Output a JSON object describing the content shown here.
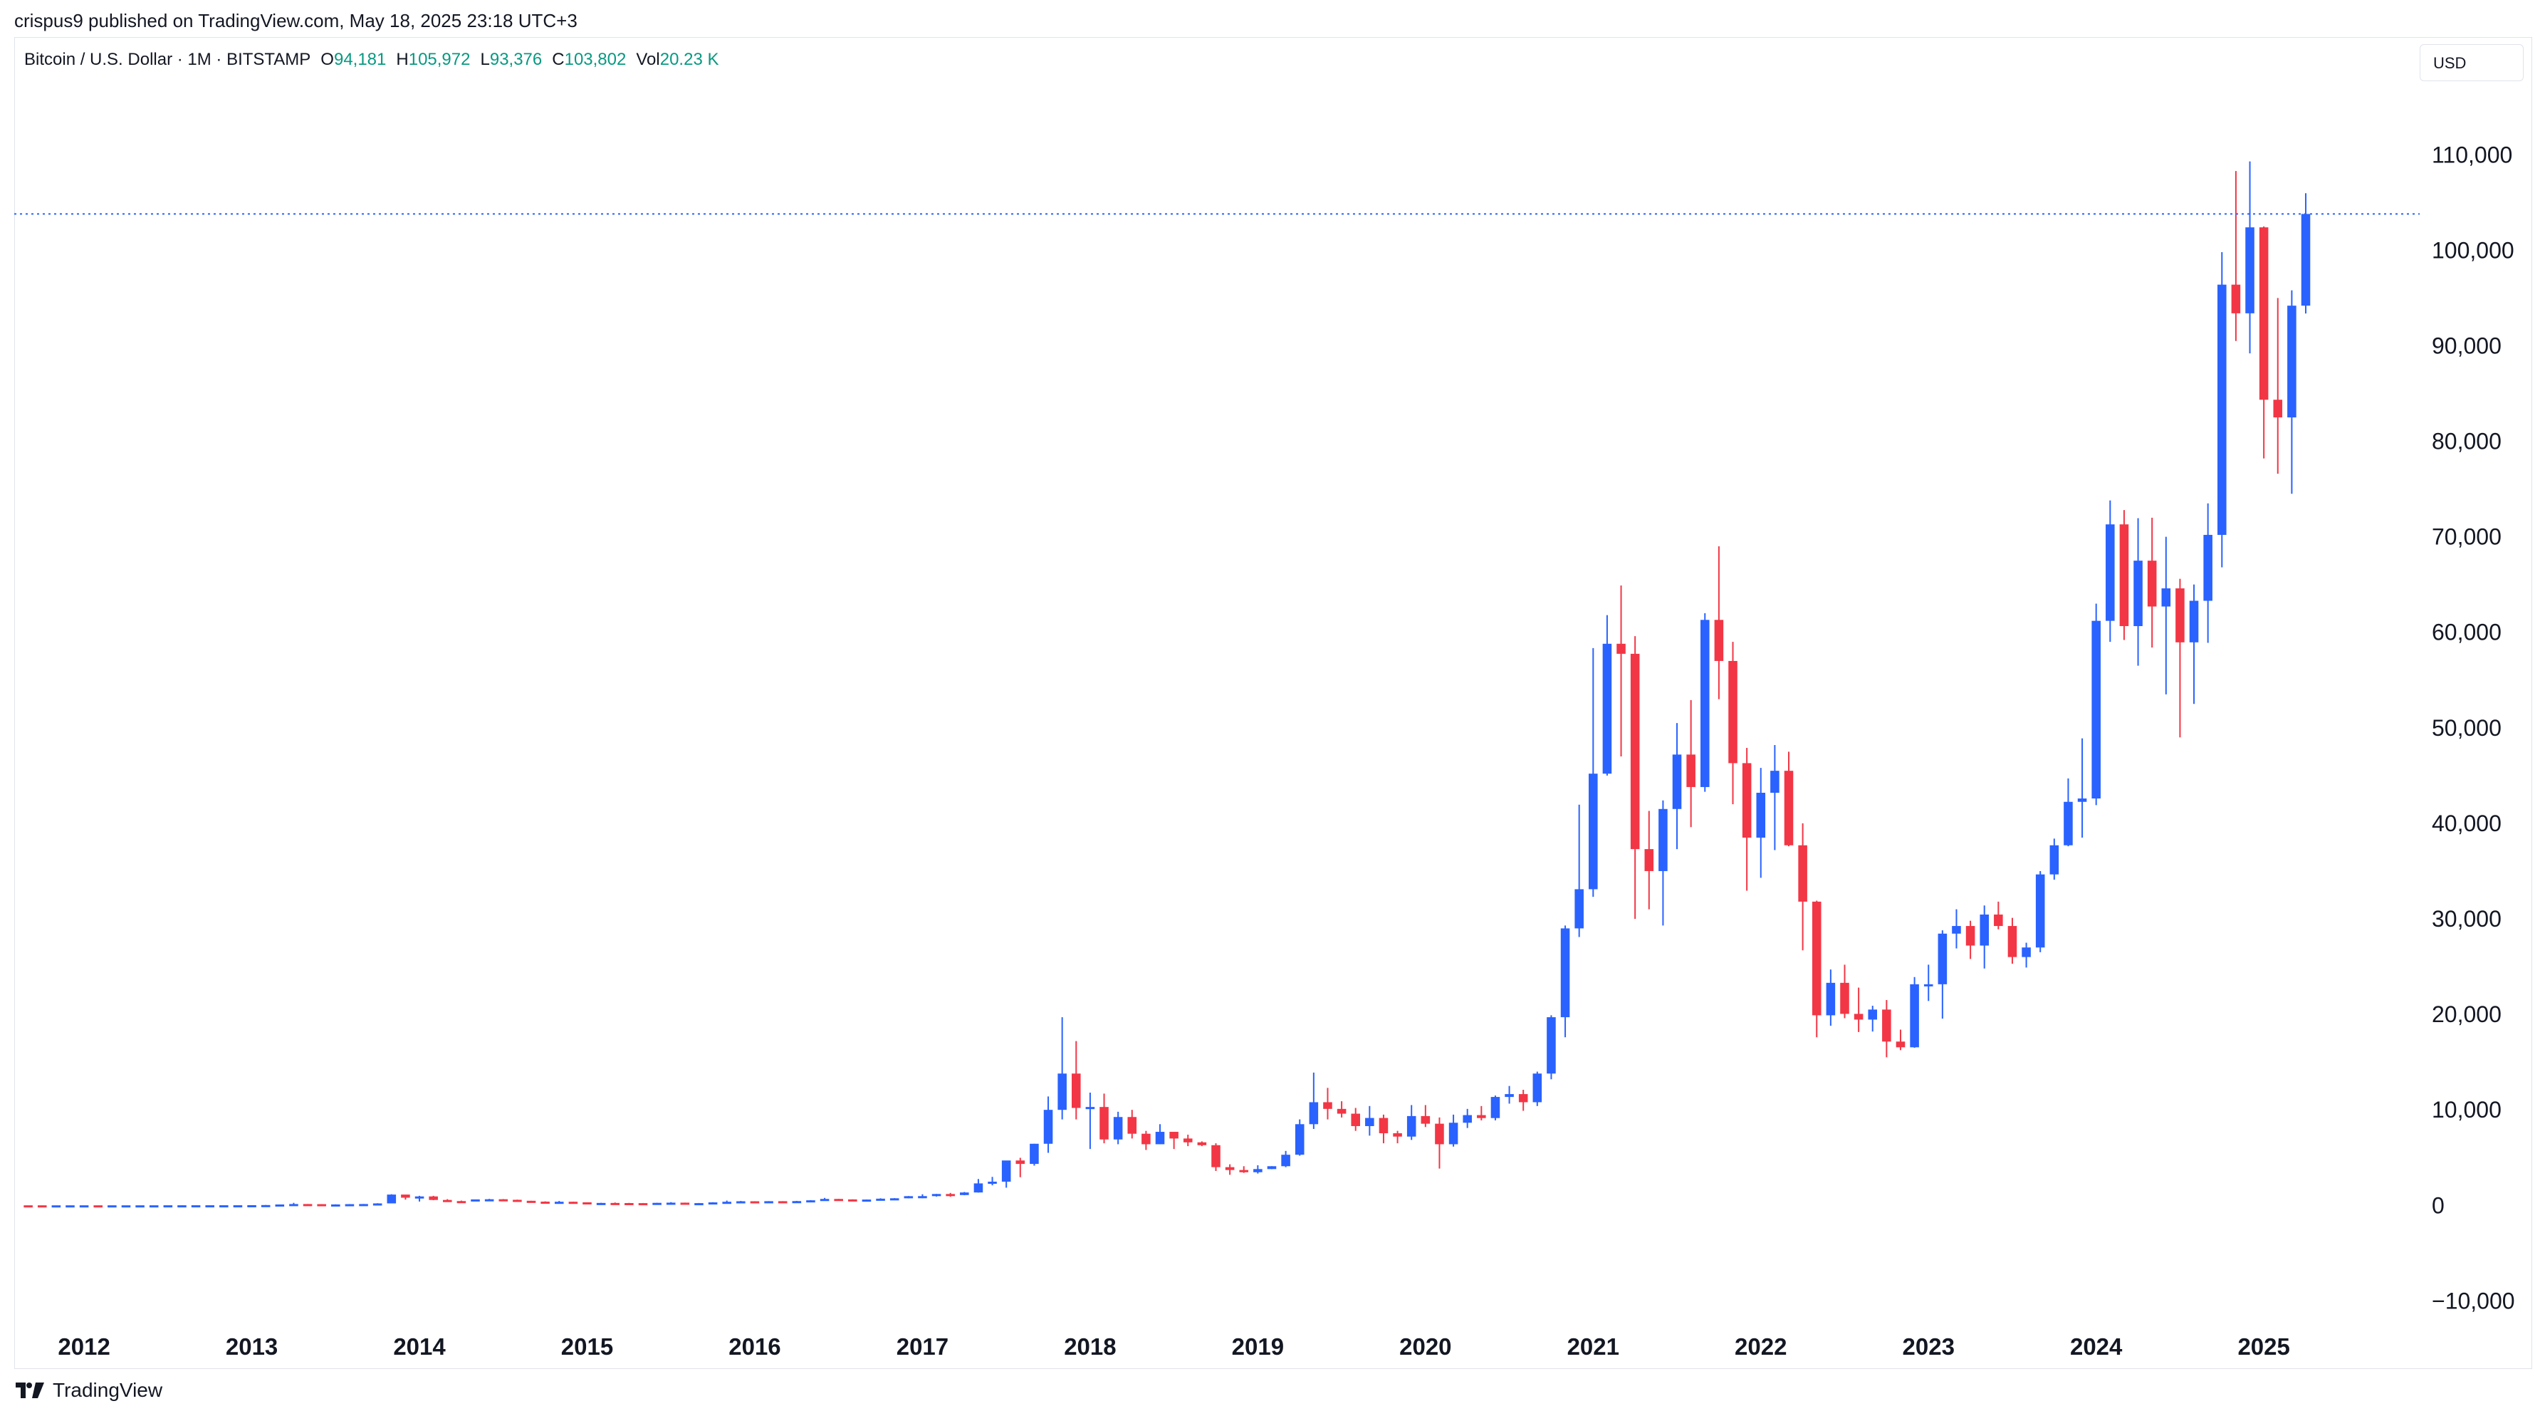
{
  "attribution": "crispus9 published on TradingView.com, May 18, 2025 23:18 UTC+3",
  "legend": {
    "symbol": "Bitcoin / U.S. Dollar · 1M · BITSTAMP",
    "o_label": "O",
    "o_value": "94,181",
    "h_label": "H",
    "h_value": "105,972",
    "l_label": "L",
    "l_value": "93,376",
    "c_label": "C",
    "c_value": "103,802",
    "vol_label": "Vol",
    "vol_value": "20.23 K"
  },
  "currency_button": "USD",
  "brand_label": "TradingView",
  "colors": {
    "up": "#2962ff",
    "down": "#f23645",
    "price_line": "#2962ff",
    "text": "#131722",
    "legend_value": "#089981"
  },
  "chart_data": {
    "type": "candlestick",
    "title": "Bitcoin / U.S. Dollar · 1M · BITSTAMP",
    "interval": "1M",
    "ylabel": "USD",
    "ylim": [
      -14000,
      118000
    ],
    "yticks": [
      -10000,
      0,
      10000,
      20000,
      30000,
      40000,
      50000,
      60000,
      70000,
      80000,
      90000,
      100000,
      110000
    ],
    "ytick_labels": [
      "−10,000",
      "0",
      "10,000",
      "20,000",
      "30,000",
      "40,000",
      "50,000",
      "60,000",
      "70,000",
      "80,000",
      "90,000",
      "100,000",
      "110,000"
    ],
    "xticks": [
      2012,
      2013,
      2014,
      2015,
      2016,
      2017,
      2018,
      2019,
      2020,
      2021,
      2022,
      2023,
      2024,
      2025
    ],
    "xtick_labels": [
      "2012",
      "2013",
      "2014",
      "2015",
      "2016",
      "2017",
      "2018",
      "2019",
      "2020",
      "2021",
      "2022",
      "2023",
      "2024",
      "2025"
    ],
    "x_range": [
      "2011-08",
      "2025-12"
    ],
    "last_close": 103802,
    "start": "2011-09",
    "ohlc": [
      [
        5,
        5.5,
        2.2,
        4.8
      ],
      [
        4.8,
        4.9,
        2,
        3
      ],
      [
        3,
        4,
        2.2,
        3
      ],
      [
        3,
        6,
        3,
        4.7
      ],
      [
        4.7,
        7,
        4.7,
        5.5
      ],
      [
        5.5,
        6.1,
        4.3,
        4.9
      ],
      [
        4.9,
        5.2,
        4.4,
        4.9
      ],
      [
        4.9,
        5.2,
        4.6,
        5
      ],
      [
        5,
        5.2,
        4.9,
        5.2
      ],
      [
        5.2,
        6.8,
        5.2,
        6.7
      ],
      [
        6.7,
        9.4,
        6.7,
        9.4
      ],
      [
        9.4,
        16.4,
        7.3,
        10.2
      ],
      [
        10.2,
        12.5,
        9.8,
        12.4
      ],
      [
        12.4,
        12.5,
        10.3,
        12.4
      ],
      [
        12.4,
        12.5,
        10.4,
        12.6
      ],
      [
        12.6,
        13.5,
        12.1,
        13.4
      ],
      [
        13.4,
        21,
        13,
        20.4
      ],
      [
        20.4,
        39,
        20,
        33.4
      ],
      [
        33.4,
        93,
        33,
        93
      ],
      [
        93,
        266,
        50,
        139
      ],
      [
        139,
        140,
        70,
        128
      ],
      [
        128,
        128,
        67,
        95
      ],
      [
        95,
        111,
        65,
        97
      ],
      [
        97,
        135,
        91,
        127
      ],
      [
        127,
        145,
        110,
        140
      ],
      [
        140,
        225,
        118,
        206
      ],
      [
        206,
        1163,
        206,
        1131
      ],
      [
        1131,
        1100,
        600,
        803
      ],
      [
        803,
        1000,
        400,
        935
      ],
      [
        935,
        1000,
        540,
        566
      ],
      [
        566,
        650,
        450,
        450
      ],
      [
        450,
        500,
        350,
        447
      ],
      [
        447,
        580,
        430,
        625
      ],
      [
        625,
        680,
        530,
        641
      ],
      [
        641,
        660,
        560,
        582
      ],
      [
        582,
        600,
        460,
        479
      ],
      [
        479,
        480,
        380,
        390
      ],
      [
        390,
        420,
        275,
        337
      ],
      [
        337,
        460,
        325,
        378
      ],
      [
        378,
        380,
        305,
        320
      ],
      [
        320,
        320,
        165,
        217
      ],
      [
        217,
        270,
        205,
        254
      ],
      [
        254,
        300,
        230,
        244
      ],
      [
        244,
        260,
        212,
        235
      ],
      [
        235,
        247,
        223,
        230
      ],
      [
        230,
        270,
        215,
        264
      ],
      [
        264,
        335,
        251,
        284
      ],
      [
        284,
        290,
        199,
        230
      ],
      [
        230,
        250,
        225,
        236
      ],
      [
        236,
        330,
        235,
        313
      ],
      [
        313,
        500,
        300,
        377
      ],
      [
        377,
        465,
        355,
        430
      ],
      [
        430,
        435,
        355,
        369
      ],
      [
        369,
        442,
        360,
        437
      ],
      [
        437,
        440,
        395,
        416
      ],
      [
        416,
        470,
        415,
        448
      ],
      [
        448,
        550,
        440,
        531
      ],
      [
        531,
        780,
        525,
        673
      ],
      [
        673,
        675,
        470,
        624
      ],
      [
        624,
        630,
        525,
        574
      ],
      [
        574,
        615,
        570,
        609
      ],
      [
        609,
        740,
        600,
        700
      ],
      [
        700,
        757,
        690,
        742
      ],
      [
        742,
        980,
        738,
        963
      ],
      [
        963,
        1160,
        750,
        970
      ],
      [
        970,
        1200,
        920,
        1190
      ],
      [
        1190,
        1300,
        900,
        1080
      ],
      [
        1080,
        1400,
        1060,
        1350
      ],
      [
        1350,
        2760,
        1340,
        2300
      ],
      [
        2300,
        2980,
        2100,
        2480
      ],
      [
        2480,
        4480,
        1850,
        4700
      ],
      [
        4700,
        4980,
        2950,
        4340
      ],
      [
        4340,
        6450,
        4160,
        6450
      ],
      [
        6450,
        11400,
        5500,
        10000
      ],
      [
        10000,
        19700,
        9000,
        13800
      ],
      [
        13800,
        17200,
        9000,
        10200
      ],
      [
        10200,
        11800,
        5900,
        10300
      ],
      [
        10300,
        11700,
        6500,
        6900
      ],
      [
        6900,
        9800,
        6400,
        9250
      ],
      [
        9250,
        10000,
        7000,
        7500
      ],
      [
        7500,
        7800,
        5800,
        6400
      ],
      [
        6400,
        8500,
        6400,
        7700
      ],
      [
        7700,
        7700,
        5900,
        7000
      ],
      [
        7000,
        7400,
        6200,
        6600
      ],
      [
        6600,
        6700,
        6200,
        6300
      ],
      [
        6300,
        6500,
        3600,
        4000
      ],
      [
        4000,
        4300,
        3200,
        3700
      ],
      [
        3700,
        4100,
        3400,
        3470
      ],
      [
        3470,
        4200,
        3330,
        3800
      ],
      [
        3800,
        4100,
        3790,
        4100
      ],
      [
        4100,
        5700,
        4000,
        5300
      ],
      [
        5300,
        9000,
        5200,
        8500
      ],
      [
        8500,
        13900,
        8000,
        10800
      ],
      [
        10800,
        12300,
        9000,
        10100
      ],
      [
        10100,
        10900,
        9200,
        9600
      ],
      [
        9600,
        10200,
        7800,
        8300
      ],
      [
        8300,
        10400,
        7300,
        9150
      ],
      [
        9150,
        9500,
        6500,
        7550
      ],
      [
        7550,
        7800,
        6500,
        7200
      ],
      [
        7200,
        10500,
        6850,
        9350
      ],
      [
        9350,
        10500,
        8200,
        8550
      ],
      [
        8550,
        9200,
        3850,
        6400
      ],
      [
        6400,
        9500,
        6150,
        8650
      ],
      [
        8650,
        10100,
        8100,
        9450
      ],
      [
        9450,
        10400,
        8900,
        9140
      ],
      [
        9140,
        11500,
        8900,
        11350
      ],
      [
        11350,
        12500,
        10650,
        11650
      ],
      [
        11650,
        12100,
        9900,
        10800
      ],
      [
        10800,
        14000,
        10400,
        13800
      ],
      [
        13800,
        19900,
        13200,
        19700
      ],
      [
        19700,
        29300,
        17600,
        29000
      ],
      [
        29000,
        41950,
        28100,
        33100
      ],
      [
        33100,
        58350,
        32300,
        45200
      ],
      [
        45200,
        61800,
        45000,
        58800
      ],
      [
        58800,
        64900,
        47000,
        57750
      ],
      [
        57750,
        59600,
        30000,
        37300
      ],
      [
        37300,
        41300,
        31000,
        35000
      ],
      [
        35000,
        42400,
        29300,
        41500
      ],
      [
        41500,
        50500,
        37300,
        47200
      ],
      [
        47200,
        52900,
        39600,
        43800
      ],
      [
        43800,
        62000,
        43300,
        61300
      ],
      [
        61300,
        69000,
        53000,
        57000
      ],
      [
        57000,
        59000,
        42000,
        46300
      ],
      [
        46300,
        47900,
        32950,
        38500
      ],
      [
        38500,
        45800,
        34300,
        43200
      ],
      [
        43200,
        48200,
        37200,
        45500
      ],
      [
        45500,
        47500,
        37600,
        37700
      ],
      [
        37700,
        40000,
        26700,
        31800
      ],
      [
        31800,
        31900,
        17600,
        19900
      ],
      [
        19900,
        24700,
        18800,
        23300
      ],
      [
        23300,
        25200,
        19600,
        20050
      ],
      [
        20050,
        22800,
        18150,
        19450
      ],
      [
        19450,
        20900,
        18200,
        20500
      ],
      [
        20500,
        21500,
        15500,
        17150
      ],
      [
        17150,
        18400,
        16250,
        16550
      ],
      [
        16550,
        23900,
        16500,
        23150
      ],
      [
        23150,
        25200,
        21400,
        23150
      ],
      [
        23150,
        28800,
        19550,
        28450
      ],
      [
        28450,
        31000,
        26900,
        29250
      ],
      [
        29250,
        29800,
        25800,
        27200
      ],
      [
        27200,
        31400,
        24800,
        30450
      ],
      [
        30450,
        31800,
        28900,
        29250
      ],
      [
        29250,
        30100,
        25300,
        26000
      ],
      [
        26000,
        27500,
        24900,
        27000
      ],
      [
        27000,
        35000,
        26500,
        34650
      ],
      [
        34650,
        38400,
        34100,
        37700
      ],
      [
        37700,
        44700,
        37600,
        42250
      ],
      [
        42250,
        48900,
        38500,
        42600
      ],
      [
        42600,
        63000,
        41900,
        61200
      ],
      [
        61200,
        73800,
        59000,
        71300
      ],
      [
        71300,
        72800,
        59200,
        60650
      ],
      [
        60650,
        71950,
        56500,
        67500
      ],
      [
        67500,
        72000,
        58400,
        62700
      ],
      [
        62700,
        70000,
        53500,
        64600
      ],
      [
        64600,
        65600,
        49000,
        58950
      ],
      [
        58950,
        65000,
        52500,
        63300
      ],
      [
        63300,
        73500,
        58900,
        70200
      ],
      [
        70200,
        99800,
        66800,
        96400
      ],
      [
        96400,
        108300,
        90500,
        93400
      ],
      [
        93400,
        109300,
        89200,
        102400
      ],
      [
        102400,
        102500,
        78200,
        84350
      ],
      [
        84350,
        95000,
        76600,
        82500
      ],
      [
        82500,
        95800,
        74500,
        94200
      ],
      [
        94200,
        105972,
        93376,
        103802
      ]
    ]
  }
}
